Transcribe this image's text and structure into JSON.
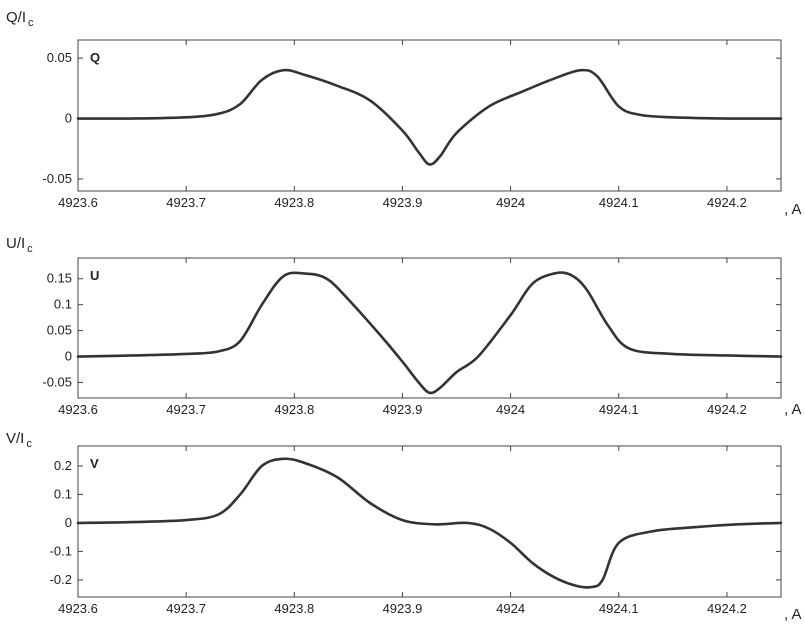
{
  "chart_data": [
    {
      "type": "line",
      "panel_label": "Q",
      "ylabel": "Q/I",
      "ylabel_sub": "c",
      "xlabel": ", A",
      "xlim": [
        4923.6,
        4924.25
      ],
      "ylim": [
        -0.06,
        0.065
      ],
      "xticks": [
        4923.6,
        4923.7,
        4923.8,
        4923.9,
        4924,
        4924.1,
        4924.2
      ],
      "xtick_labels": [
        "4923.6",
        "4923.7",
        "4923.8",
        "4923.9",
        "4924",
        "4924.1",
        "4924.2"
      ],
      "yticks": [
        -0.05,
        0,
        0.05
      ],
      "ytick_labels": [
        "-0.05",
        "0",
        "0.05"
      ],
      "grid": false,
      "color": "#333333",
      "series": [
        {
          "x": [
            4923.6,
            4923.65,
            4923.7,
            4923.73,
            4923.75,
            4923.77,
            4923.79,
            4923.81,
            4923.84,
            4923.87,
            4923.9,
            4923.915,
            4923.925,
            4923.935,
            4923.95,
            4923.98,
            4924.01,
            4924.04,
            4924.065,
            4924.08,
            4924.1,
            4924.12,
            4924.15,
            4924.2,
            4924.25
          ],
          "y": [
            0,
            0,
            0.001,
            0.004,
            0.012,
            0.032,
            0.04,
            0.036,
            0.027,
            0.015,
            -0.01,
            -0.028,
            -0.038,
            -0.031,
            -0.012,
            0.01,
            0.022,
            0.033,
            0.04,
            0.035,
            0.01,
            0.003,
            0.001,
            0,
            0
          ]
        }
      ]
    },
    {
      "type": "line",
      "panel_label": "U",
      "ylabel": "U/I",
      "ylabel_sub": "c",
      "xlabel": ", A",
      "xlim": [
        4923.6,
        4924.25
      ],
      "ylim": [
        -0.08,
        0.19
      ],
      "xticks": [
        4923.6,
        4923.7,
        4923.8,
        4923.9,
        4924,
        4924.1,
        4924.2
      ],
      "xtick_labels": [
        "4923.6",
        "4923.7",
        "4923.8",
        "4923.9",
        "4924",
        "4924.1",
        "4924.2"
      ],
      "yticks": [
        -0.05,
        0,
        0.05,
        0.1,
        0.15
      ],
      "ytick_labels": [
        "-0.05",
        "0",
        "0.05",
        "0.1",
        "0.15"
      ],
      "grid": false,
      "color": "#333333",
      "series": [
        {
          "x": [
            4923.6,
            4923.65,
            4923.7,
            4923.73,
            4923.75,
            4923.77,
            4923.79,
            4923.81,
            4923.83,
            4923.85,
            4923.88,
            4923.9,
            4923.915,
            4923.925,
            4923.935,
            4923.95,
            4923.97,
            4924,
            4924.02,
            4924.04,
            4924.055,
            4924.07,
            4924.09,
            4924.11,
            4924.15,
            4924.2,
            4924.25
          ],
          "y": [
            0,
            0.002,
            0.005,
            0.01,
            0.03,
            0.1,
            0.155,
            0.16,
            0.15,
            0.11,
            0.04,
            -0.01,
            -0.05,
            -0.07,
            -0.06,
            -0.03,
            0.0,
            0.08,
            0.14,
            0.16,
            0.158,
            0.13,
            0.06,
            0.015,
            0.005,
            0.002,
            0
          ]
        }
      ]
    },
    {
      "type": "line",
      "panel_label": "V",
      "ylabel": "V/I",
      "ylabel_sub": "c",
      "xlabel": ", A",
      "xlim": [
        4923.6,
        4924.25
      ],
      "ylim": [
        -0.26,
        0.27
      ],
      "xticks": [
        4923.6,
        4923.7,
        4923.8,
        4923.9,
        4924,
        4924.1,
        4924.2
      ],
      "xtick_labels": [
        "4923.6",
        "4923.7",
        "4923.8",
        "4923.9",
        "4924",
        "4924.1",
        "4924.2"
      ],
      "yticks": [
        -0.2,
        -0.1,
        0,
        0.1,
        0.2
      ],
      "ytick_labels": [
        "-0.2",
        "-0.1",
        "0",
        "0.1",
        "0.2"
      ],
      "grid": false,
      "color": "#333333",
      "series": [
        {
          "x": [
            4923.6,
            4923.65,
            4923.7,
            4923.73,
            4923.75,
            4923.77,
            4923.79,
            4923.81,
            4923.84,
            4923.87,
            4923.9,
            4923.93,
            4923.96,
            4923.98,
            4924,
            4924.02,
            4924.04,
            4924.06,
            4924.075,
            4924.085,
            4924.1,
            4924.13,
            4924.17,
            4924.21,
            4924.25
          ],
          "y": [
            0,
            0.003,
            0.01,
            0.03,
            0.1,
            0.2,
            0.225,
            0.21,
            0.16,
            0.07,
            0.01,
            -0.005,
            0.0,
            -0.02,
            -0.07,
            -0.14,
            -0.19,
            -0.22,
            -0.225,
            -0.2,
            -0.07,
            -0.03,
            -0.015,
            -0.005,
            0
          ]
        }
      ]
    }
  ]
}
